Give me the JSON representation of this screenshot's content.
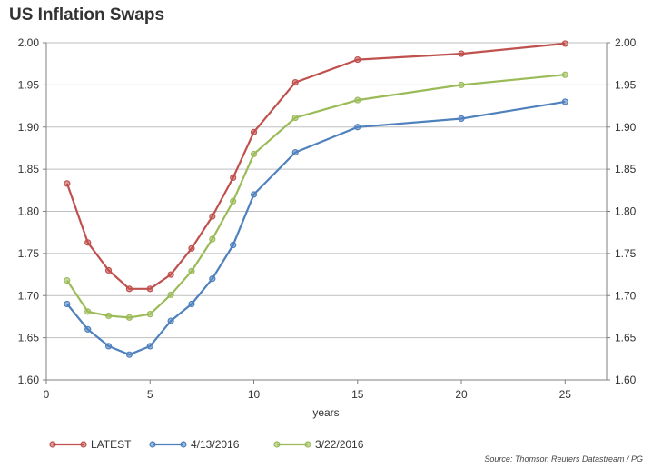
{
  "chart_data": {
    "type": "line",
    "title": "US Inflation Swaps",
    "xlabel": "years",
    "ylabel": "",
    "xlim": [
      0,
      27
    ],
    "ylim": [
      1.6,
      2.0
    ],
    "xticks": [
      0,
      5,
      10,
      15,
      20,
      25
    ],
    "yticks": [
      1.6,
      1.65,
      1.7,
      1.75,
      1.8,
      1.85,
      1.9,
      1.95,
      2.0
    ],
    "ytick_labels": [
      "1.60",
      "1.65",
      "1.70",
      "1.75",
      "1.80",
      "1.85",
      "1.90",
      "1.95",
      "2.00"
    ],
    "grid": "horizontal",
    "legend": "bottom",
    "x": [
      1,
      2,
      3,
      4,
      5,
      6,
      7,
      8,
      9,
      10,
      12,
      15,
      20,
      25
    ],
    "series": [
      {
        "name": "LATEST",
        "color": "#c0504d",
        "values": [
          1.833,
          1.763,
          1.73,
          1.708,
          1.708,
          1.725,
          1.756,
          1.794,
          1.84,
          1.894,
          1.953,
          1.98,
          1.987,
          1.999
        ]
      },
      {
        "name": "4/13/2016",
        "color": "#4f81bd",
        "values": [
          1.69,
          1.66,
          1.64,
          1.63,
          1.64,
          1.67,
          1.69,
          1.72,
          1.76,
          1.82,
          1.87,
          1.9,
          1.91,
          1.93
        ]
      },
      {
        "name": "3/22/2016",
        "color": "#9bbb59",
        "values": [
          1.718,
          1.681,
          1.676,
          1.674,
          1.678,
          1.701,
          1.729,
          1.767,
          1.812,
          1.868,
          1.911,
          1.932,
          1.95,
          1.962
        ]
      }
    ],
    "source": "Source: Thomson Reuters Datastream / PG"
  }
}
